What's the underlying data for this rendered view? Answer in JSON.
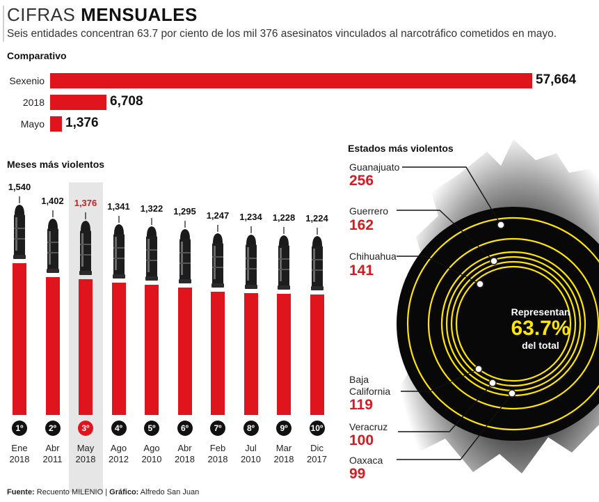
{
  "header": {
    "title_light": "CIFRAS",
    "title_bold": "MENSUALES",
    "subtitle": "Seis entidades concentran 63.7 por ciento de los mil 376 asesinatos vinculados al narcotráfico cometidos en mayo."
  },
  "chart_data": [
    {
      "type": "bar",
      "orientation": "horizontal",
      "title": "Comparativo",
      "categories": [
        "Sexenio",
        "2018",
        "Mayo"
      ],
      "values": [
        57664,
        6708,
        1376
      ],
      "value_labels": [
        "57,664",
        "6,708",
        "1,376"
      ],
      "colors": {
        "bar": "#e0141c"
      }
    },
    {
      "type": "bar",
      "title": "Meses más violentos",
      "ranks": [
        "1º",
        "2º",
        "3º",
        "4º",
        "5º",
        "6º",
        "7º",
        "8º",
        "9º",
        "10º"
      ],
      "months": [
        "Ene",
        "Abr",
        "May",
        "Ago",
        "Ago",
        "Abr",
        "Feb",
        "Jul",
        "Mar",
        "Dic"
      ],
      "years": [
        "2018",
        "2011",
        "2018",
        "2012",
        "2010",
        "2018",
        "2018",
        "2010",
        "2018",
        "2017"
      ],
      "values": [
        1540,
        1402,
        1376,
        1341,
        1322,
        1295,
        1247,
        1234,
        1228,
        1224
      ],
      "value_labels": [
        "1,540",
        "1,402",
        "1,376",
        "1,341",
        "1,322",
        "1,295",
        "1,247",
        "1,234",
        "1,228",
        "1,224"
      ],
      "highlight_index": 2,
      "colors": {
        "bar": "#e0141c",
        "highlight_text": "#d71920"
      }
    },
    {
      "type": "table",
      "title": "Estados más violentos",
      "states": [
        {
          "name": "Guanajuato",
          "value": "256"
        },
        {
          "name": "Guerrero",
          "value": "162"
        },
        {
          "name": "Chihuahua",
          "value": "141"
        },
        {
          "name": "Baja California",
          "value": "119"
        },
        {
          "name": "Veracruz",
          "value": "100"
        },
        {
          "name": "Oaxaca",
          "value": "99"
        }
      ],
      "center": {
        "line1": "Representan",
        "percent": "63.7%",
        "line3": "del total"
      }
    }
  ],
  "labels": {
    "baja_line1": "Baja",
    "baja_line2": "California"
  },
  "footer": {
    "source_label": "Fuente:",
    "source": "Recuento MILENIO",
    "sep": "|",
    "graphic_label": "Gráfico:",
    "graphic": "Alfredo San Juan"
  }
}
